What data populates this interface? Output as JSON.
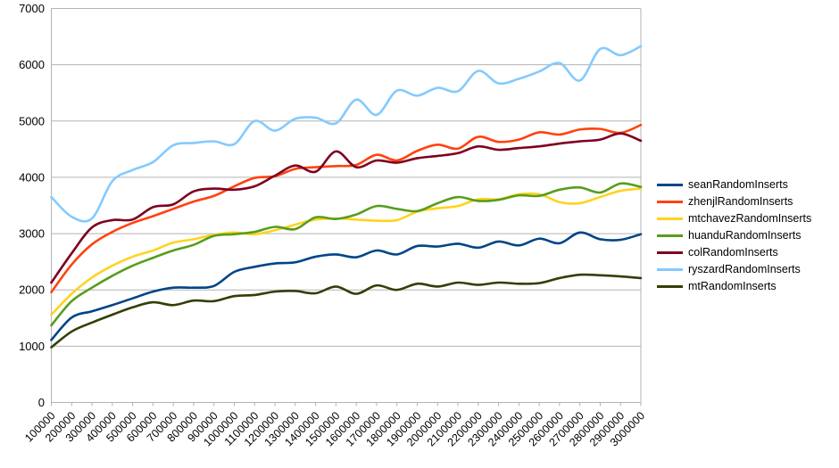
{
  "chart_data": {
    "type": "line",
    "smooth": true,
    "title": "",
    "xlabel": "",
    "ylabel": "",
    "grid": true,
    "legend_position": "right",
    "background_color": "#ffffff",
    "gridline_color": "#b3b3b3",
    "axis_line_color": "#b3b3b3",
    "label_color": "#000000",
    "y_axis": {
      "min": 0,
      "max": 7000,
      "step": 1000,
      "tick_labels": [
        "0",
        "1000",
        "2000",
        "3000",
        "4000",
        "5000",
        "6000",
        "7000"
      ]
    },
    "categories": [
      "100000",
      "200000",
      "300000",
      "400000",
      "500000",
      "600000",
      "700000",
      "800000",
      "900000",
      "1000000",
      "1100000",
      "1200000",
      "1300000",
      "1400000",
      "1500000",
      "1600000",
      "1700000",
      "1800000",
      "1900000",
      "2000000",
      "2100000",
      "2200000",
      "2300000",
      "2400000",
      "2500000",
      "2600000",
      "2700000",
      "2800000",
      "2900000",
      "3000000"
    ],
    "series": [
      {
        "name": "seanRandomInserts",
        "color": "#004586",
        "values": [
          1110,
          1510,
          1620,
          1730,
          1850,
          1970,
          2040,
          2040,
          2070,
          2320,
          2410,
          2470,
          2490,
          2590,
          2630,
          2580,
          2700,
          2630,
          2780,
          2770,
          2820,
          2750,
          2860,
          2790,
          2910,
          2830,
          3020,
          2900,
          2890,
          2990
        ]
      },
      {
        "name": "zhenjlRandomInserts",
        "color": "#FF420E",
        "values": [
          1960,
          2450,
          2810,
          3030,
          3190,
          3310,
          3440,
          3570,
          3670,
          3840,
          3990,
          4020,
          4150,
          4180,
          4200,
          4220,
          4400,
          4300,
          4470,
          4580,
          4510,
          4720,
          4630,
          4670,
          4800,
          4760,
          4850,
          4860,
          4790,
          4930
        ]
      },
      {
        "name": "mtchavezRandomInserts",
        "color": "#FFD320",
        "values": [
          1560,
          1930,
          2220,
          2430,
          2590,
          2700,
          2840,
          2900,
          2980,
          3020,
          2990,
          3060,
          3160,
          3250,
          3270,
          3250,
          3230,
          3240,
          3390,
          3450,
          3490,
          3610,
          3610,
          3700,
          3700,
          3560,
          3540,
          3650,
          3760,
          3800
        ]
      },
      {
        "name": "huanduRandomInserts",
        "color": "#579D1C",
        "values": [
          1370,
          1800,
          2040,
          2250,
          2430,
          2570,
          2700,
          2800,
          2960,
          2990,
          3030,
          3120,
          3080,
          3290,
          3260,
          3340,
          3490,
          3440,
          3400,
          3540,
          3650,
          3580,
          3600,
          3680,
          3670,
          3780,
          3820,
          3730,
          3890,
          3830
        ]
      },
      {
        "name": "colRandomInserts",
        "color": "#7E0021",
        "values": [
          2130,
          2650,
          3110,
          3240,
          3250,
          3470,
          3520,
          3750,
          3800,
          3780,
          3840,
          4030,
          4210,
          4100,
          4460,
          4180,
          4300,
          4260,
          4340,
          4380,
          4430,
          4550,
          4490,
          4520,
          4550,
          4600,
          4640,
          4670,
          4780,
          4650
        ]
      },
      {
        "name": "ryszardRandomInserts",
        "color": "#83CAFF",
        "values": [
          3650,
          3300,
          3270,
          3930,
          4130,
          4270,
          4570,
          4610,
          4640,
          4590,
          5000,
          4830,
          5040,
          5060,
          4960,
          5380,
          5110,
          5540,
          5450,
          5590,
          5530,
          5890,
          5670,
          5750,
          5880,
          6030,
          5720,
          6280,
          6170,
          6330
        ]
      },
      {
        "name": "mtRandomInserts",
        "color": "#314004",
        "values": [
          980,
          1260,
          1420,
          1560,
          1690,
          1780,
          1730,
          1810,
          1800,
          1890,
          1910,
          1970,
          1980,
          1940,
          2060,
          1930,
          2080,
          2000,
          2110,
          2060,
          2130,
          2090,
          2130,
          2110,
          2120,
          2210,
          2270,
          2260,
          2240,
          2210
        ]
      }
    ]
  }
}
